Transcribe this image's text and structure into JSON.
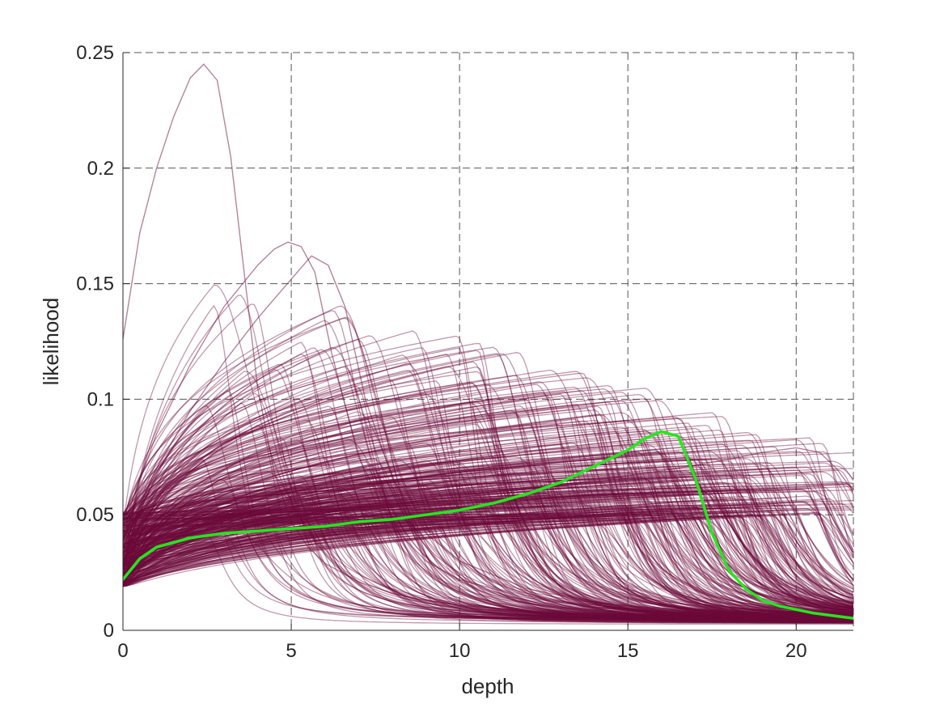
{
  "chart_data": {
    "type": "line",
    "title": "",
    "xlabel": "depth",
    "ylabel": "likelihood",
    "xlim": [
      0,
      21.7
    ],
    "ylim": [
      0,
      0.25
    ],
    "xticks": [
      0,
      5,
      10,
      15,
      20
    ],
    "xtick_labels": [
      "0",
      "5",
      "10",
      "15",
      "20"
    ],
    "yticks": [
      0,
      0.05,
      0.1,
      0.15,
      0.2,
      0.25
    ],
    "ytick_labels": [
      "0",
      "0.05",
      "0.1",
      "0.15",
      "0.2",
      "0.25"
    ],
    "grid": true,
    "legend": "none",
    "colors": {
      "ensemble": "#6b0a3a",
      "highlight": "#22e81c",
      "grid": "#555555",
      "axis": "#262626"
    },
    "ensemble_count": 420,
    "ensemble_peak_range": {
      "depth": [
        2.4,
        21.7
      ],
      "likelihood": [
        0.05,
        0.245
      ]
    },
    "series": [
      {
        "style": "highlight",
        "x": [
          0,
          0.5,
          1,
          1.5,
          2,
          3,
          4,
          5,
          6,
          7,
          8,
          9,
          10,
          11,
          12,
          13,
          14,
          15,
          15.5,
          16,
          16.5,
          17,
          17.5,
          18,
          18.5,
          19,
          19.5,
          20,
          20.5,
          21,
          21.7
        ],
        "y": [
          0.022,
          0.031,
          0.036,
          0.038,
          0.04,
          0.042,
          0.043,
          0.044,
          0.045,
          0.047,
          0.048,
          0.05,
          0.052,
          0.055,
          0.059,
          0.064,
          0.071,
          0.078,
          0.083,
          0.086,
          0.084,
          0.066,
          0.042,
          0.026,
          0.018,
          0.013,
          0.0105,
          0.009,
          0.0075,
          0.0065,
          0.0052
        ]
      },
      {
        "style": "outlier",
        "x": [
          0,
          0.5,
          1,
          1.5,
          2,
          2.4,
          2.8,
          3.2,
          3.6,
          4,
          4.5,
          5,
          5.5,
          6,
          7,
          8,
          9,
          10,
          12,
          14,
          16,
          18,
          20,
          21.7
        ],
        "y": [
          0.126,
          0.172,
          0.2,
          0.222,
          0.239,
          0.245,
          0.238,
          0.205,
          0.155,
          0.105,
          0.068,
          0.047,
          0.036,
          0.029,
          0.021,
          0.016,
          0.013,
          0.011,
          0.008,
          0.0065,
          0.0055,
          0.0048,
          0.0044,
          0.004
        ]
      },
      {
        "style": "outlier",
        "x": [
          0,
          1,
          2,
          3,
          4,
          4.5,
          4.9,
          5.3,
          5.7,
          6.2,
          7,
          8,
          9,
          10,
          12,
          14,
          16,
          18,
          20,
          21.7
        ],
        "y": [
          0.045,
          0.085,
          0.115,
          0.14,
          0.158,
          0.165,
          0.168,
          0.166,
          0.155,
          0.12,
          0.075,
          0.045,
          0.03,
          0.022,
          0.014,
          0.01,
          0.008,
          0.0065,
          0.0055,
          0.005
        ]
      },
      {
        "style": "outlier",
        "x": [
          0,
          1,
          2,
          3,
          4,
          5,
          5.6,
          6.1,
          6.6,
          7.2,
          8,
          9,
          10,
          12,
          14,
          16,
          18,
          20,
          21.7
        ],
        "y": [
          0.04,
          0.07,
          0.095,
          0.116,
          0.135,
          0.152,
          0.162,
          0.158,
          0.14,
          0.1,
          0.066,
          0.042,
          0.03,
          0.018,
          0.012,
          0.009,
          0.007,
          0.006,
          0.005
        ]
      },
      {
        "style": "outlier",
        "x": [
          0,
          2,
          4,
          6,
          8,
          10,
          12,
          14,
          16,
          18,
          19,
          20,
          20.7,
          21.2,
          21.7
        ],
        "y": [
          0.03,
          0.042,
          0.047,
          0.051,
          0.055,
          0.058,
          0.061,
          0.065,
          0.069,
          0.074,
          0.077,
          0.079,
          0.077,
          0.07,
          0.06
        ]
      }
    ]
  }
}
